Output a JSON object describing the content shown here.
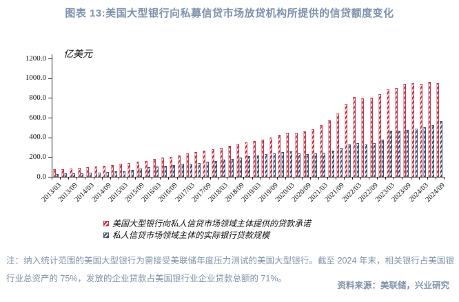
{
  "title": "图表 13:美国大型银行向私募信贷市场放贷机构所提供的信贷额度变化",
  "note": "注：纳入统计范围的美国大型银行为需接受美联储年度压力测试的美国大型银行。截至 2024 年末，相关银行占美国银行业总资产的 75%，发放的企业贷款占美国银行业企业贷款总额的 71%。",
  "source": "资料来源：美联储，兴业研究",
  "chart_data": {
    "type": "bar",
    "title": "图表 13:美国大型银行向私募信贷市场放贷机构所提供的信贷额度变化",
    "ylabel": "亿美元",
    "ylim": [
      0,
      1200
    ],
    "ytick_step": 200,
    "y_tick_labels": [
      "0.0",
      "200.0",
      "400.0",
      "600.0",
      "800.0",
      "1000.0",
      "1200.0"
    ],
    "x_tick_labels": [
      "2013/03",
      "2013/09",
      "2014/03",
      "2014/09",
      "2015/03",
      "2015/09",
      "2016/03",
      "2016/09",
      "2017/03",
      "2017/09",
      "2018/03",
      "2018/09",
      "2019/03",
      "2019/09",
      "2020/03",
      "2020/09",
      "2021/03",
      "2021/09",
      "2022/03",
      "2022/09",
      "2023/03",
      "2023/09",
      "2024/03",
      "2024/09"
    ],
    "categories": [
      "2013/03",
      "2013/06",
      "2013/09",
      "2013/12",
      "2014/03",
      "2014/06",
      "2014/09",
      "2014/12",
      "2015/03",
      "2015/06",
      "2015/09",
      "2015/12",
      "2016/03",
      "2016/06",
      "2016/09",
      "2016/12",
      "2017/03",
      "2017/06",
      "2017/09",
      "2017/12",
      "2018/03",
      "2018/06",
      "2018/09",
      "2018/12",
      "2019/03",
      "2019/06",
      "2019/09",
      "2019/12",
      "2020/03",
      "2020/06",
      "2020/09",
      "2020/12",
      "2021/03",
      "2021/06",
      "2021/09",
      "2021/12",
      "2022/03",
      "2022/06",
      "2022/09",
      "2022/12",
      "2023/03",
      "2023/06",
      "2023/09",
      "2023/12",
      "2024/03",
      "2024/06",
      "2024/09"
    ],
    "grid": false,
    "legend_position": "bottom",
    "series": [
      {
        "name": "美国大型银行向私人信贷市场领域主体提供的贷款承诺",
        "color": "#c23a50",
        "edge_color": "#eba7b0",
        "values": [
          75,
          80,
          85,
          91,
          97,
          104,
          111,
          118,
          134,
          142,
          152,
          163,
          181,
          192,
          204,
          218,
          236,
          248,
          262,
          277,
          295,
          315,
          336,
          352,
          364,
          380,
          400,
          425,
          450,
          445,
          460,
          480,
          520,
          570,
          640,
          740,
          810,
          795,
          805,
          835,
          885,
          900,
          940,
          950,
          945,
          960,
          950
        ]
      },
      {
        "name": "私人信贷市场领域主体的实际银行贷款规模",
        "color": "#44536f",
        "edge_color": "#a9b4c8",
        "values": [
          30,
          32,
          34,
          36,
          40,
          44,
          49,
          54,
          59,
          70,
          87,
          99,
          106,
          113,
          122,
          136,
          129,
          141,
          153,
          160,
          171,
          183,
          195,
          210,
          218,
          230,
          240,
          250,
          260,
          240,
          230,
          235,
          245,
          265,
          290,
          330,
          340,
          330,
          345,
          380,
          465,
          470,
          475,
          490,
          505,
          520,
          563
        ]
      }
    ]
  },
  "legend": {
    "item1": "美国大型银行向私人信贷市场领域主体提供的贷款承诺",
    "item2": "私人信贷市场领域主体的实际银行贷款规模"
  }
}
